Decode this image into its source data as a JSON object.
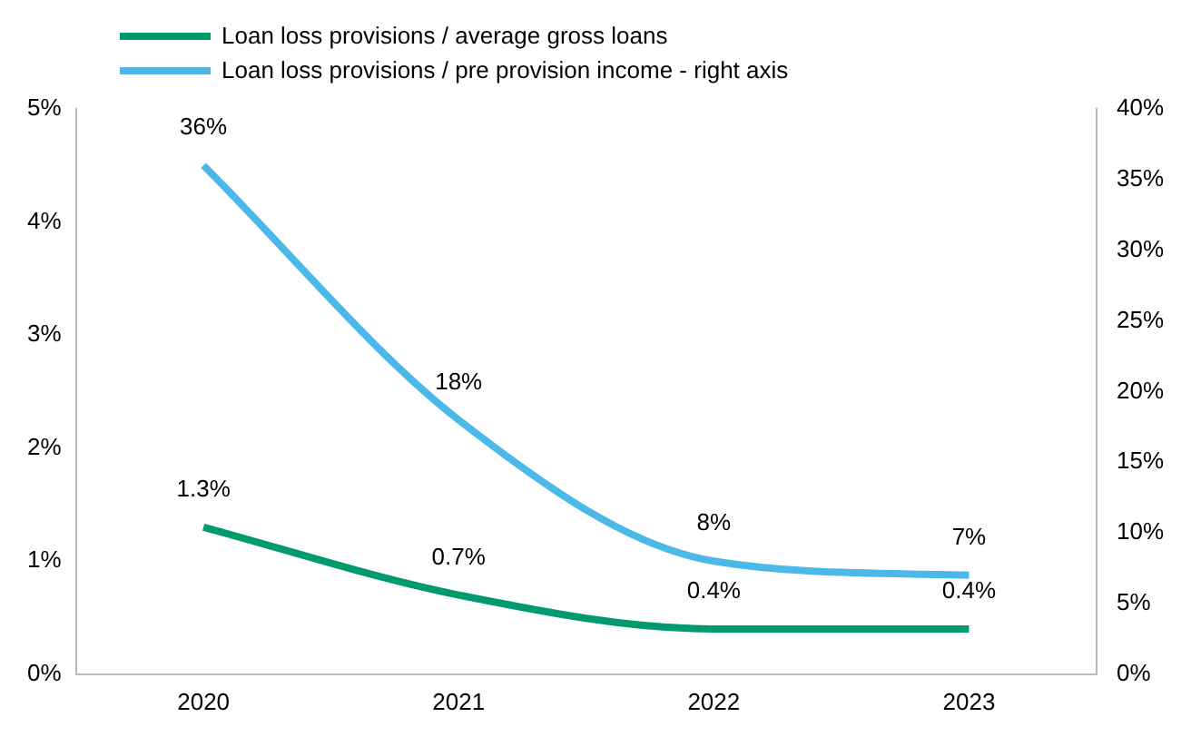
{
  "chart_data": {
    "type": "line",
    "categories": [
      "2020",
      "2021",
      "2022",
      "2023"
    ],
    "series": [
      {
        "name": "Loan loss provisions / average gross loans",
        "color": "#009a6e",
        "values": [
          1.3,
          0.7,
          0.4,
          0.4
        ],
        "value_labels": [
          "1.3%",
          "0.7%",
          "0.4%",
          "0.4%"
        ]
      },
      {
        "name": "Loan loss provisions / pre provision income - right axis",
        "color": "#4bb9e8",
        "axis": "y2",
        "values": [
          36,
          18,
          8,
          7
        ],
        "value_labels": [
          "36%",
          "18%",
          "8%",
          "7%"
        ]
      }
    ],
    "ylim": [
      0,
      5
    ],
    "yticks": [
      {
        "value": 0,
        "label": "0%"
      },
      {
        "value": 1,
        "label": "1%"
      },
      {
        "value": 2,
        "label": "2%"
      },
      {
        "value": 3,
        "label": "3%"
      },
      {
        "value": 4,
        "label": "4%"
      },
      {
        "value": 5,
        "label": "5%"
      }
    ],
    "y2lim": [
      0,
      40
    ],
    "y2ticks": [
      {
        "value": 0,
        "label": "0%"
      },
      {
        "value": 5,
        "label": "5%"
      },
      {
        "value": 10,
        "label": "10%"
      },
      {
        "value": 15,
        "label": "15%"
      },
      {
        "value": 20,
        "label": "20%"
      },
      {
        "value": 25,
        "label": "25%"
      },
      {
        "value": 30,
        "label": "30%"
      },
      {
        "value": 35,
        "label": "35%"
      },
      {
        "value": 40,
        "label": "40%"
      }
    ],
    "grid": false,
    "legend": "top left",
    "marker": "none",
    "line_style": "solid"
  }
}
